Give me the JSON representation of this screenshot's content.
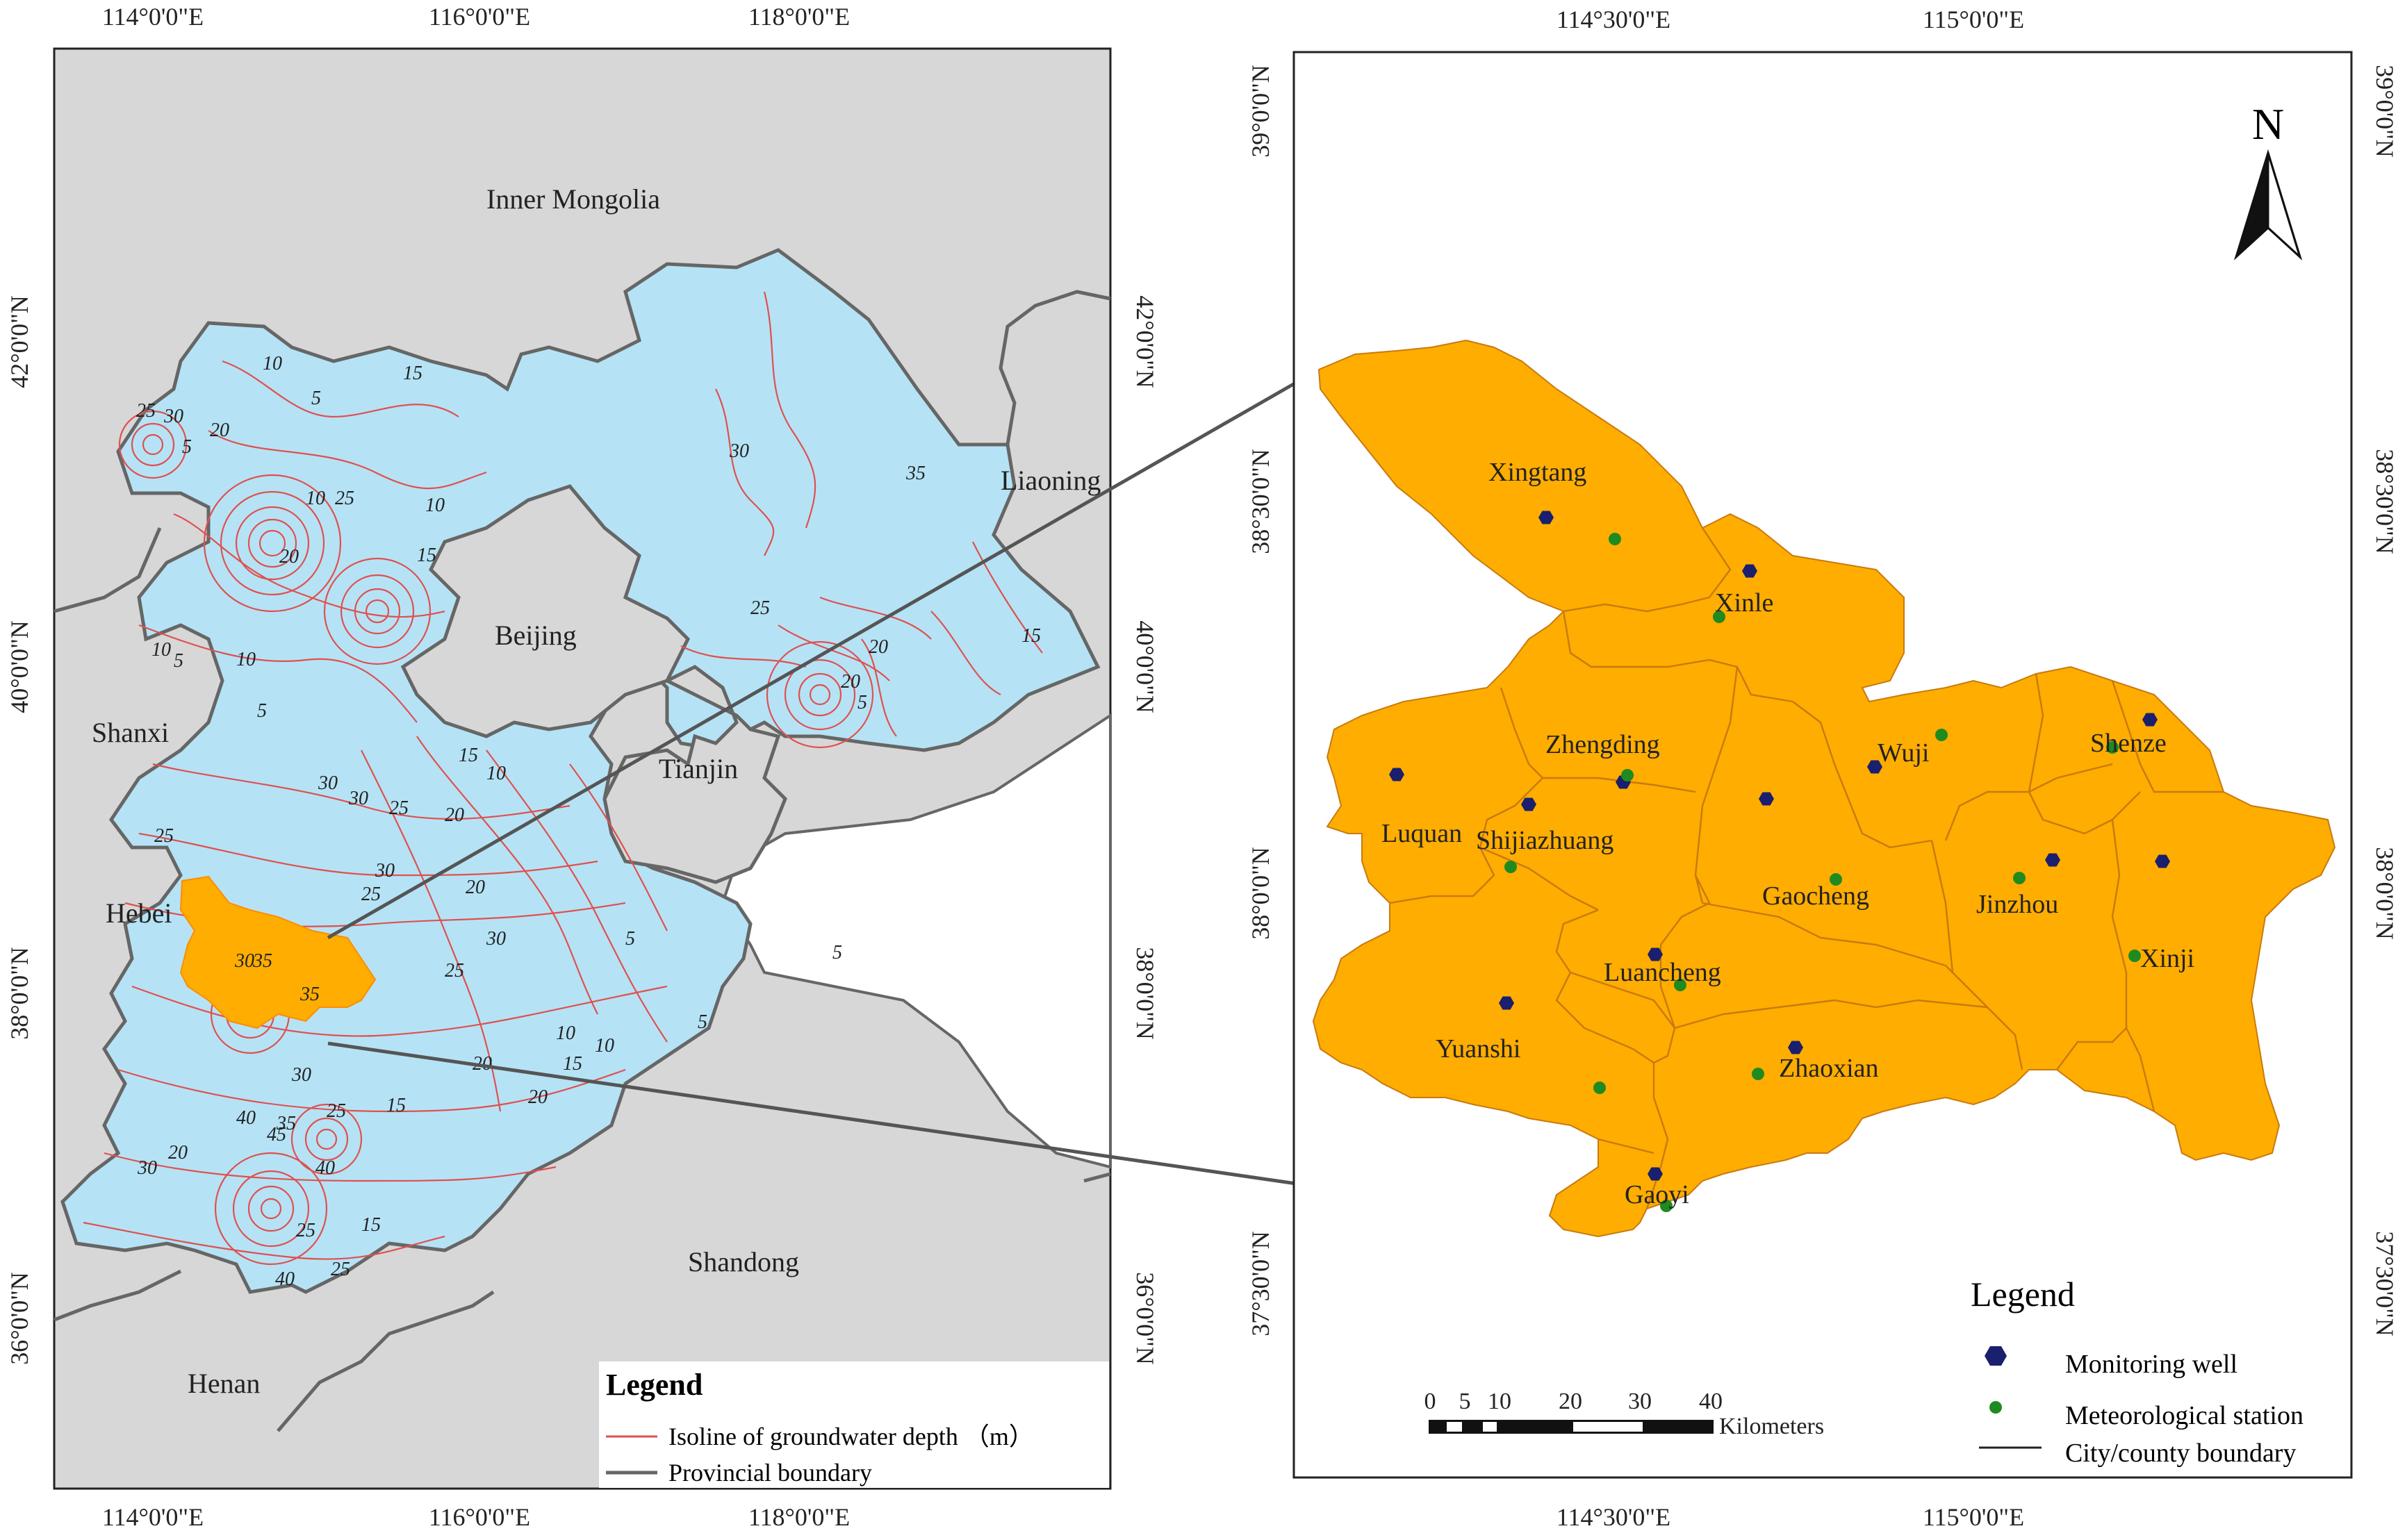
{
  "left_panel": {
    "top_ticks": [
      "114°0'0\"E",
      "116°0'0\"E",
      "118°0'0\"E"
    ],
    "bottom_ticks": [
      "114°0'0\"E",
      "116°0'0\"E",
      "118°0'0\"E"
    ],
    "left_ticks": [
      "42°0'0\"N",
      "40°0'0\"N",
      "38°0'0\"N",
      "36°0'0\"N"
    ],
    "right_ticks": [
      "42°0'0\"N",
      "40°0'0\"N",
      "38°0'0\"N",
      "36°0'0\"N"
    ],
    "regions": [
      "Inner Mongolia",
      "Liaoning",
      "Beijing",
      "Shanxi",
      "Tianjin",
      "Hebei",
      "Shandong",
      "Henan"
    ],
    "contour_labels": [
      "10",
      "5",
      "15",
      "25",
      "30",
      "20",
      "5",
      "10",
      "25",
      "20",
      "15",
      "10",
      "30",
      "35",
      "25",
      "20",
      "5",
      "20",
      "15",
      "10",
      "5",
      "10",
      "5",
      "15",
      "10",
      "30",
      "30",
      "25",
      "20",
      "25",
      "30",
      "20",
      "25",
      "30",
      "35",
      "25",
      "30",
      "5",
      "10",
      "40",
      "35",
      "45",
      "30",
      "25",
      "40",
      "15",
      "20",
      "30",
      "25",
      "15",
      "20",
      "20",
      "15",
      "10",
      "5",
      "5",
      "25",
      "35",
      "40"
    ],
    "legend": {
      "title": "Legend",
      "items": [
        "Isoline of groundwater depth （m）",
        "Provincial boundary"
      ]
    },
    "colors": {
      "study_area": "#ffad00",
      "land": "#d7d7d7",
      "hebei_beijing_tianjin": "#b5e3f5",
      "isoline": "#e05050",
      "boundary": "#666666"
    }
  },
  "right_panel": {
    "top_ticks": [
      "114°30'0\"E",
      "115°0'0\"E"
    ],
    "bottom_ticks": [
      "114°30'0\"E",
      "115°0'0\"E"
    ],
    "left_ticks": [
      "39°0'0\"N",
      "38°30'0\"N",
      "38°0'0\"N",
      "37°30'0\"N"
    ],
    "right_ticks": [
      "39°0'0\"N",
      "38°30'0\"N",
      "38°0'0\"N",
      "37°30'0\"N"
    ],
    "north_label": "N",
    "counties": [
      "Xingtang",
      "Xinle",
      "Zhengding",
      "Wuji",
      "Shenze",
      "Luquan",
      "Shijiazhuang",
      "Gaocheng",
      "Jinzhou",
      "Xinji",
      "Luancheng",
      "Yuanshi",
      "Zhaoxian",
      "Gaoyi"
    ],
    "scale_bar": {
      "ticks": [
        "0",
        "5",
        "10",
        "20",
        "30",
        "40"
      ],
      "unit": "Kilometers"
    },
    "legend": {
      "title": "Legend",
      "items": [
        "Monitoring well",
        "Meteorological station",
        "City/county boundary"
      ]
    },
    "colors": {
      "study_area": "#ffad00",
      "well": "#1a1f6e",
      "station": "#1f8a1f",
      "boundary": "#c87a10"
    }
  }
}
